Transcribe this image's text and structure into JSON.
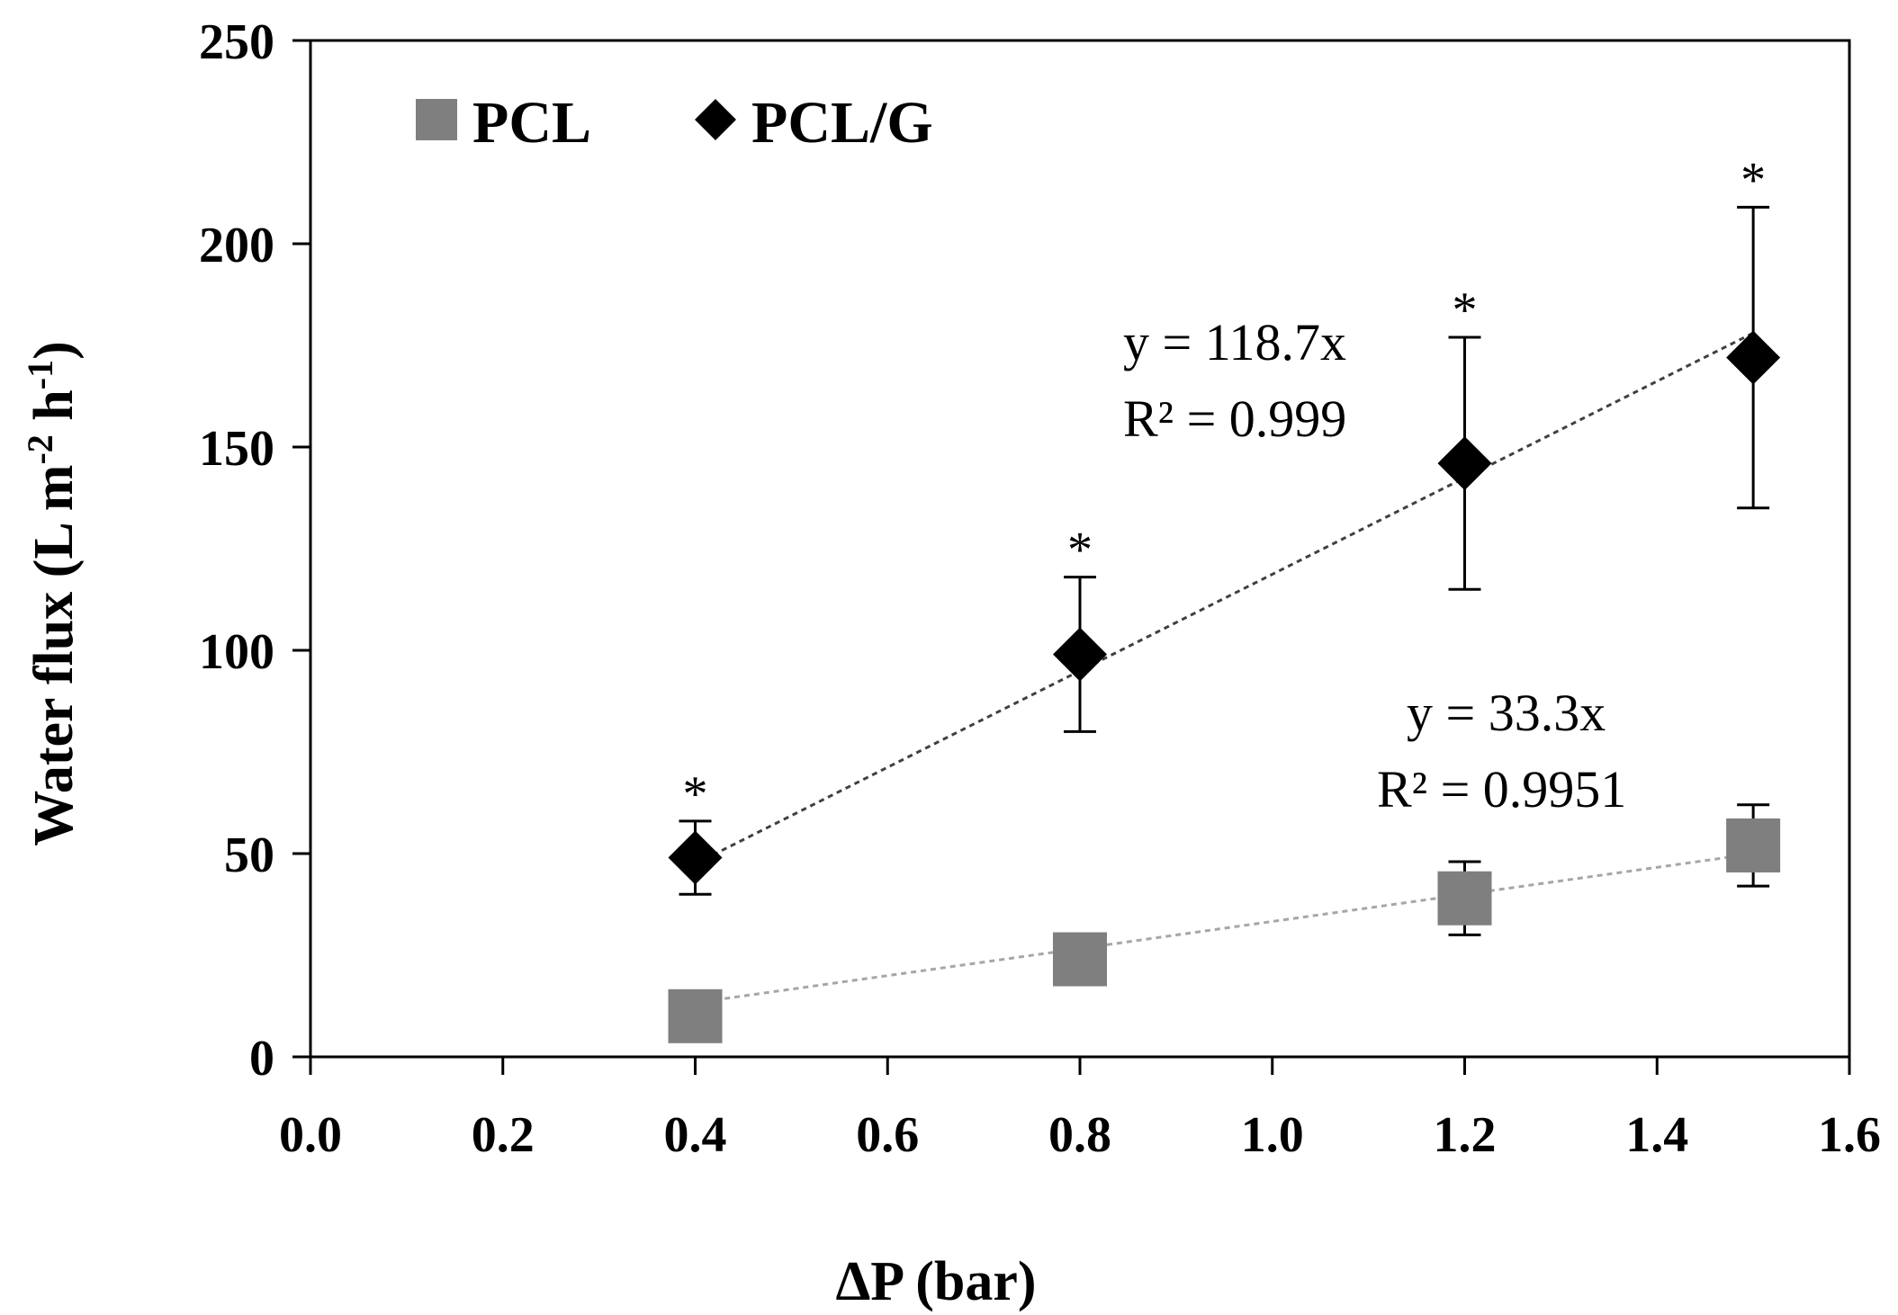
{
  "chart_data": {
    "type": "scatter",
    "title": "",
    "xlabel": "ΔP (bar)",
    "ylabel_main": "Water flux (L m",
    "ylabel_sup1": "-2",
    "ylabel_mid": " h",
    "ylabel_sup2": "-1",
    "ylabel_end": ")",
    "xlim": [
      0.0,
      1.6
    ],
    "ylim": [
      0,
      250
    ],
    "x_ticks": [
      0.0,
      0.2,
      0.4,
      0.6,
      0.8,
      1.0,
      1.2,
      1.4,
      1.6
    ],
    "x_tick_labels": [
      "0.0",
      "0.2",
      "0.4",
      "0.6",
      "0.8",
      "1.0",
      "1.2",
      "1.4",
      "1.6"
    ],
    "y_ticks": [
      0,
      50,
      100,
      150,
      200,
      250
    ],
    "y_tick_labels": [
      "0",
      "50",
      "100",
      "150",
      "200",
      "250"
    ],
    "grid": false,
    "legend_position": "top-left",
    "series": [
      {
        "name": "PCL",
        "marker": "square",
        "color": "#7f7f7f",
        "x": [
          0.4,
          0.8,
          1.2,
          1.5
        ],
        "y": [
          10,
          24,
          39,
          52
        ],
        "error": [
          null,
          null,
          9,
          10
        ],
        "significance": [
          "",
          "",
          "",
          ""
        ],
        "trendline": {
          "slope": 33.3,
          "color": "#a6a6a6",
          "x_range": [
            0.4,
            1.5
          ]
        },
        "equation": "y = 33.3x",
        "r_squared": "R² = 0.9951"
      },
      {
        "name": "PCL/G",
        "marker": "diamond",
        "color": "#000000",
        "x": [
          0.4,
          0.8,
          1.2,
          1.5
        ],
        "y": [
          49,
          99,
          146,
          172
        ],
        "error": [
          9,
          19,
          31,
          37
        ],
        "significance": [
          "*",
          "*",
          "*",
          "*"
        ],
        "trendline": {
          "slope": 118.7,
          "color": "#404040",
          "x_range": [
            0.4,
            1.5
          ]
        },
        "equation": "y = 118.7x",
        "r_squared": "R² = 0.999"
      }
    ]
  }
}
